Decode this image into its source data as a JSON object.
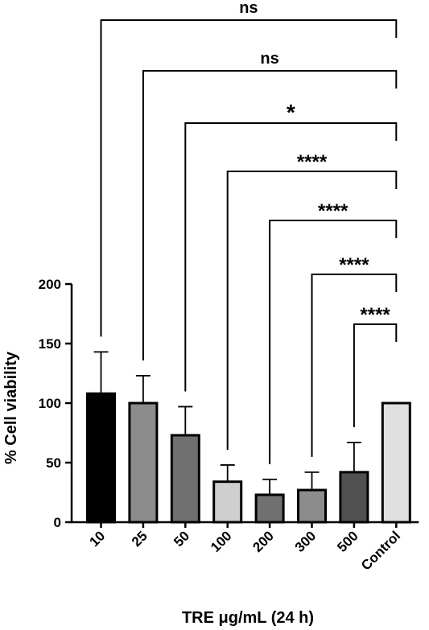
{
  "chart_data": {
    "type": "bar",
    "categories": [
      "10",
      "25",
      "50",
      "100",
      "200",
      "300",
      "500",
      "Control"
    ],
    "values": [
      108,
      100,
      73,
      34,
      23,
      27,
      42,
      100
    ],
    "errors": [
      35,
      23,
      24,
      14,
      13,
      15,
      25,
      0
    ],
    "bar_colors": [
      "#000000",
      "#8c8c8c",
      "#707070",
      "#cfcfcf",
      "#707070",
      "#8c8c8c",
      "#505050",
      "#e0e0e0"
    ],
    "xlabel": "TRE μg/mL (24 h)",
    "ylabel": "% Cell viability",
    "ylim": [
      0,
      200
    ],
    "yticks": [
      0,
      50,
      100,
      150,
      200
    ],
    "comparisons": [
      {
        "from": "10",
        "to": "Control",
        "label": "ns"
      },
      {
        "from": "25",
        "to": "Control",
        "label": "ns"
      },
      {
        "from": "50",
        "to": "Control",
        "label": "*"
      },
      {
        "from": "100",
        "to": "Control",
        "label": "****"
      },
      {
        "from": "200",
        "to": "Control",
        "label": "****"
      },
      {
        "from": "300",
        "to": "Control",
        "label": "****"
      },
      {
        "from": "500",
        "to": "Control",
        "label": "****"
      }
    ]
  }
}
